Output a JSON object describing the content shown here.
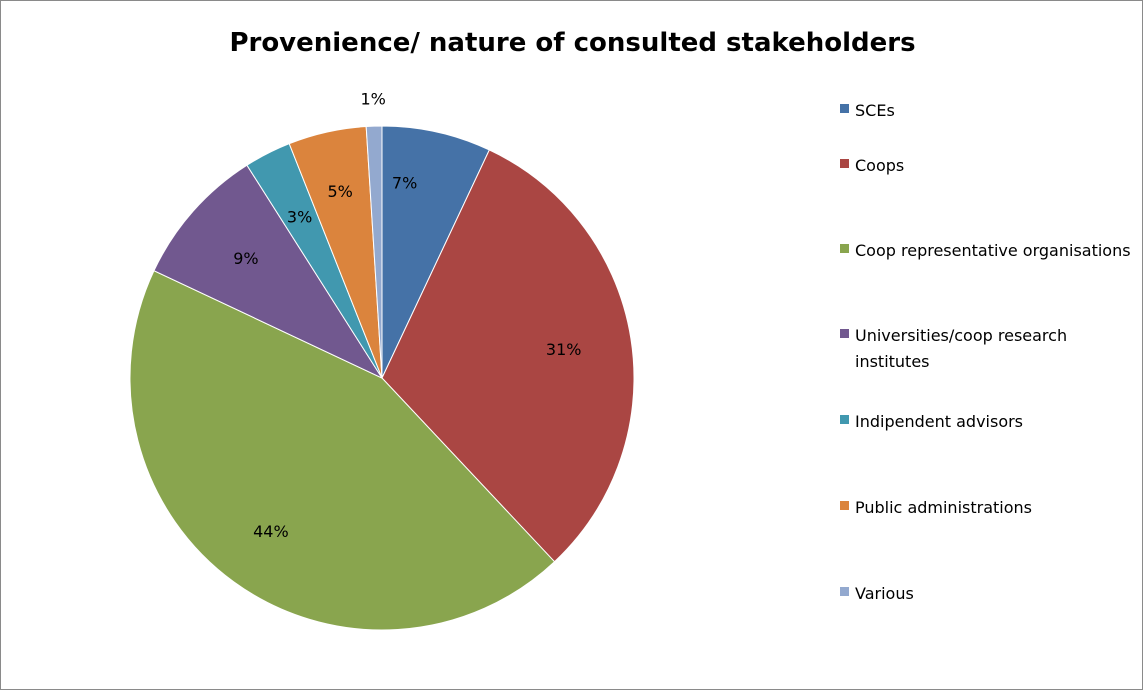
{
  "chart_data": {
    "type": "pie",
    "title": "Provenience/ nature of consulted stakeholders",
    "categories": [
      "SCEs",
      "Coops",
      "Coop representative organisations",
      "Universities/coop research institutes",
      "Indipendent advisors",
      "Public administrations",
      "Various"
    ],
    "values": [
      7,
      31,
      44,
      9,
      3,
      5,
      1
    ],
    "value_labels": [
      "7%",
      "31%",
      "44%",
      "9%",
      "3%",
      "5%",
      "1%"
    ],
    "colors": [
      "#4572a7",
      "#aa4643",
      "#89a54e",
      "#71588f",
      "#4198af",
      "#db843d",
      "#93a9cf"
    ],
    "legend_position": "right",
    "grid": false
  }
}
